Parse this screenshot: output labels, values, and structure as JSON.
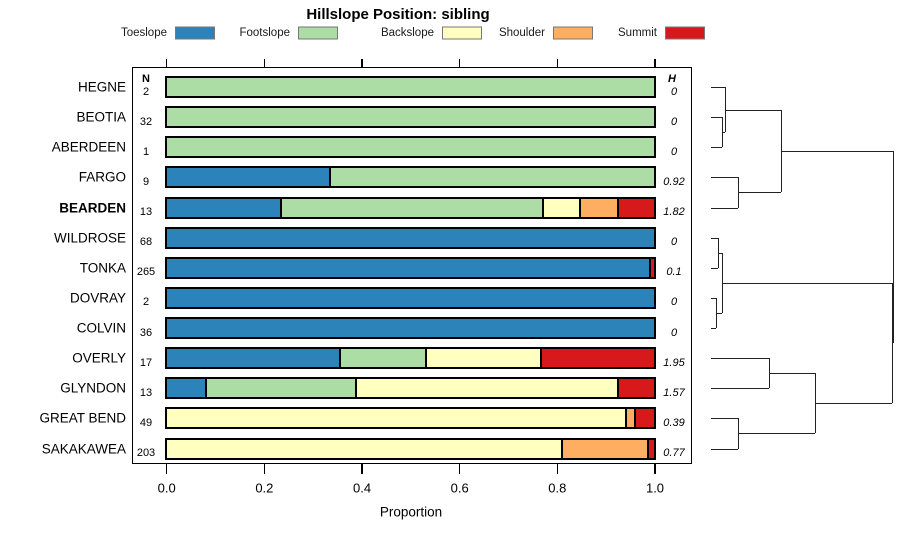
{
  "chart_data": {
    "type": "bar",
    "subtype": "horizontal-stacked-proportion with dendrogram",
    "title": "Hillslope Position: sibling",
    "xlabel": "Proportion",
    "xlim": [
      0,
      1.05
    ],
    "xtick_values": [
      0,
      0.2,
      0.4,
      0.6,
      0.8,
      1.0
    ],
    "xtick_labels": [
      "0.0",
      "0.2",
      "0.4",
      "0.6",
      "0.8",
      "1.0"
    ],
    "grid": "off",
    "legend_position": "top",
    "n_header": "N",
    "h_header": "H",
    "series_names": [
      "Toeslope",
      "Footslope",
      "Backslope",
      "Shoulder",
      "Summit"
    ],
    "legend": [
      {
        "label": "Toeslope",
        "color": "#2B83BA"
      },
      {
        "label": "Footslope",
        "color": "#ABDDA4"
      },
      {
        "label": "Backslope",
        "color": "#FFFFBF"
      },
      {
        "label": "Shoulder",
        "color": "#FDAE61"
      },
      {
        "label": "Summit",
        "color": "#D7191C"
      }
    ],
    "rows": [
      {
        "name": "HEGNE",
        "n": "2",
        "h": "0",
        "bold": false,
        "values": [
          0,
          1,
          0,
          0,
          0
        ]
      },
      {
        "name": "BEOTIA",
        "n": "32",
        "h": "0",
        "bold": false,
        "values": [
          0,
          1,
          0,
          0,
          0
        ]
      },
      {
        "name": "ABERDEEN",
        "n": "1",
        "h": "0",
        "bold": false,
        "values": [
          0,
          1,
          0,
          0,
          0
        ]
      },
      {
        "name": "FARGO",
        "n": "9",
        "h": "0.92",
        "bold": false,
        "values": [
          0.333,
          0.667,
          0,
          0,
          0
        ]
      },
      {
        "name": "BEARDEN",
        "n": "13",
        "h": "1.82",
        "bold": true,
        "values": [
          0.231,
          0.538,
          0.077,
          0.077,
          0.077
        ]
      },
      {
        "name": "WILDROSE",
        "n": "68",
        "h": "0",
        "bold": false,
        "values": [
          1,
          0,
          0,
          0,
          0
        ]
      },
      {
        "name": "TONKA",
        "n": "265",
        "h": "0.1",
        "bold": false,
        "values": [
          0.989,
          0,
          0,
          0,
          0.011
        ]
      },
      {
        "name": "DOVRAY",
        "n": "2",
        "h": "0",
        "bold": false,
        "values": [
          1,
          0,
          0,
          0,
          0
        ]
      },
      {
        "name": "COLVIN",
        "n": "36",
        "h": "0",
        "bold": false,
        "values": [
          1,
          0,
          0,
          0,
          0
        ]
      },
      {
        "name": "OVERLY",
        "n": "17",
        "h": "1.95",
        "bold": false,
        "values": [
          0.353,
          0.176,
          0.236,
          0,
          0.235
        ]
      },
      {
        "name": "GLYNDON",
        "n": "13",
        "h": "1.57",
        "bold": false,
        "values": [
          0.077,
          0.308,
          0.538,
          0,
          0.077
        ]
      },
      {
        "name": "GREAT BEND",
        "n": "49",
        "h": "0.39",
        "bold": false,
        "values": [
          0,
          0,
          0.939,
          0.02,
          0.041
        ]
      },
      {
        "name": "SAKAKAWEA",
        "n": "203",
        "h": "0.77",
        "bold": false,
        "values": [
          0,
          0,
          0.808,
          0.177,
          0.015
        ]
      }
    ],
    "dendrogram": {
      "h": 1.0,
      "children": [
        {
          "h": 0.385,
          "children": [
            {
              "h": 0.077,
              "children": [
                {
                  "leaf": 0
                },
                {
                  "h": 0.06,
                  "children": [
                    {
                      "leaf": 1
                    },
                    {
                      "leaf": 2
                    }
                  ]
                }
              ]
            },
            {
              "h": 0.148,
              "children": [
                {
                  "leaf": 3
                },
                {
                  "leaf": 4
                }
              ]
            }
          ]
        },
        {
          "h": 0.997,
          "children": [
            {
              "h": 0.06,
              "children": [
                {
                  "h": 0.038,
                  "children": [
                    {
                      "leaf": 5
                    },
                    {
                      "leaf": 6
                    }
                  ]
                },
                {
                  "h": 0.027,
                  "children": [
                    {
                      "leaf": 7
                    },
                    {
                      "leaf": 8
                    }
                  ]
                }
              ]
            },
            {
              "h": 0.571,
              "children": [
                {
                  "h": 0.319,
                  "children": [
                    {
                      "leaf": 9
                    },
                    {
                      "leaf": 10
                    }
                  ]
                },
                {
                  "h": 0.146,
                  "children": [
                    {
                      "leaf": 11
                    },
                    {
                      "leaf": 12
                    }
                  ]
                }
              ]
            }
          ]
        }
      ]
    }
  }
}
